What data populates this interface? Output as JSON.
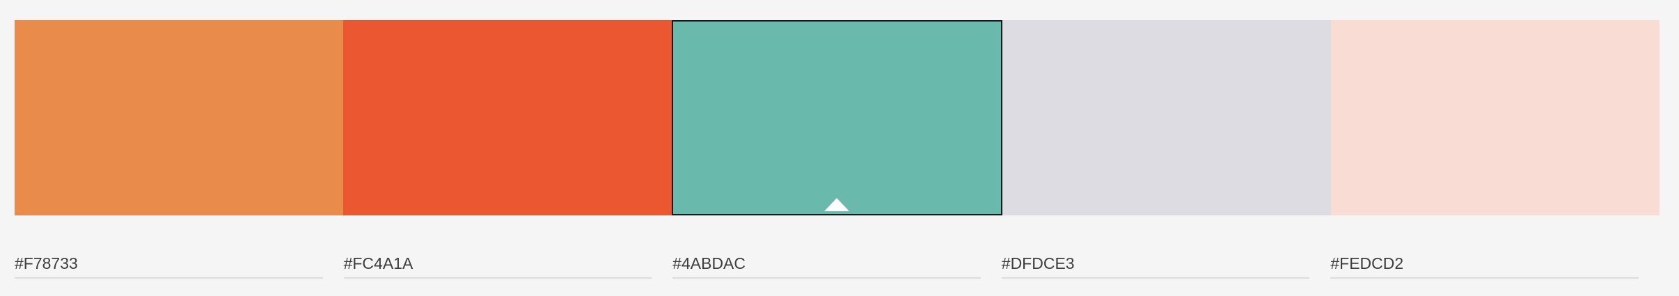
{
  "palette": {
    "swatches": [
      {
        "hex": "#F78733",
        "color": "#E98B4A"
      },
      {
        "hex": "#FC4A1A",
        "color": "#EA5731"
      },
      {
        "hex": "#4ABDAC",
        "color": "#69BAAC",
        "selected": true
      },
      {
        "hex": "#DFDCE3",
        "color": "#DEDCE3"
      },
      {
        "hex": "#FEDCD2",
        "color": "#F9DDD4"
      }
    ],
    "selected_marker_icon": "triangle-up-icon"
  }
}
